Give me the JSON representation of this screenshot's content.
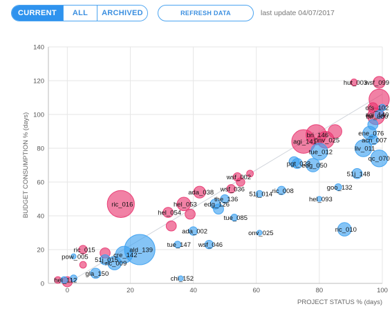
{
  "toolbar": {
    "tabs": [
      {
        "label": "CURRENT",
        "active": true
      },
      {
        "label": "ALL",
        "active": false
      },
      {
        "label": "ARCHIVED",
        "active": false
      }
    ],
    "refresh_label": "REFRESH DATA",
    "last_update": "last update 04/07/2017"
  },
  "colors": {
    "pink": "#e8336e",
    "blue": "#3a9ff0",
    "accent": "#2f93ee",
    "grid": "#e6e6e6",
    "trend": "#cfd3da"
  },
  "chart_data": {
    "type": "scatter",
    "title": "",
    "xlabel": "PROJECT STATUS % (days)",
    "ylabel": "BUDGET CONSUMPTION % (days)",
    "xlim": [
      -6,
      100
    ],
    "ylim": [
      0,
      140
    ],
    "xticks": [
      0,
      20,
      40,
      60,
      80,
      100
    ],
    "yticks": [
      0,
      20,
      40,
      60,
      80,
      100,
      120,
      140
    ],
    "grid": true,
    "trend_line": [
      [
        0,
        0
      ],
      [
        100,
        112
      ]
    ],
    "series": [
      {
        "color": "pink",
        "points": [
          {
            "x": 17,
            "y": 47,
            "r": 8,
            "label": "ric_016"
          },
          {
            "x": 75,
            "y": 84,
            "r": 7,
            "label": "agi_141"
          },
          {
            "x": 79,
            "y": 88,
            "r": 6,
            "label": "bri_146"
          },
          {
            "x": 82,
            "y": 85,
            "r": 5,
            "label": "onv_025"
          },
          {
            "x": 85,
            "y": 90,
            "r": 4,
            "label": ""
          },
          {
            "x": 98,
            "y": 99,
            "r": 5,
            "label": "bri_080"
          },
          {
            "x": 99,
            "y": 109,
            "r": 6,
            "label": ""
          },
          {
            "x": 99,
            "y": 119,
            "r": 3.5,
            "label": "wsf_099"
          },
          {
            "x": 91,
            "y": 119,
            "r": 2,
            "label": "hut_003"
          },
          {
            "x": 97,
            "y": 104,
            "r": 3,
            "label": ""
          },
          {
            "x": 42,
            "y": 54,
            "r": 3.5,
            "label": "ada_038"
          },
          {
            "x": 37,
            "y": 47,
            "r": 4,
            "label": "hel_053"
          },
          {
            "x": 32,
            "y": 42,
            "r": 3,
            "label": "hel_054"
          },
          {
            "x": 33,
            "y": 34,
            "r": 3,
            "label": ""
          },
          {
            "x": 39,
            "y": 41,
            "r": 3,
            "label": ""
          },
          {
            "x": 54,
            "y": 63,
            "r": 2.5,
            "label": "wsf_002"
          },
          {
            "x": 55,
            "y": 60,
            "r": 2.5,
            "label": ""
          },
          {
            "x": 58,
            "y": 65,
            "r": 2,
            "label": ""
          },
          {
            "x": 52,
            "y": 56,
            "r": 2.5,
            "label": "wsf_036"
          },
          {
            "x": 5,
            "y": 20,
            "r": 2.5,
            "label": "ric_015"
          },
          {
            "x": 12,
            "y": 18,
            "r": 3,
            "label": ""
          },
          {
            "x": 5,
            "y": 11,
            "r": 2,
            "label": ""
          },
          {
            "x": -3,
            "y": 2,
            "r": 2,
            "label": ""
          },
          {
            "x": 0,
            "y": 1,
            "r": 3,
            "label": ""
          }
        ]
      },
      {
        "color": "blue",
        "points": [
          {
            "x": 23,
            "y": 20,
            "r": 9,
            "label": "ald_139"
          },
          {
            "x": 18,
            "y": 17,
            "r": 5,
            "label": "cre_142"
          },
          {
            "x": 15,
            "y": 12,
            "r": 4,
            "label": "ric_009"
          },
          {
            "x": 12,
            "y": 14,
            "r": 3,
            "label": "51j_015"
          },
          {
            "x": 9,
            "y": 6,
            "r": 3,
            "label": "gla_150"
          },
          {
            "x": 35,
            "y": 23,
            "r": 2,
            "label": "tue_147"
          },
          {
            "x": 40,
            "y": 31,
            "r": 2.5,
            "label": "ada_002"
          },
          {
            "x": 45,
            "y": 23,
            "r": 2.5,
            "label": "wsf_046"
          },
          {
            "x": 48,
            "y": 44,
            "r": 3,
            "label": ""
          },
          {
            "x": 50,
            "y": 50,
            "r": 2.5,
            "label": "the_136"
          },
          {
            "x": 47,
            "y": 47,
            "r": 3,
            "label": "edg_126"
          },
          {
            "x": 53,
            "y": 39,
            "r": 2,
            "label": "tue_085"
          },
          {
            "x": 61,
            "y": 30,
            "r": 1.5,
            "label": "onv_025"
          },
          {
            "x": 36,
            "y": 3,
            "r": 1.5,
            "label": "chi_152"
          },
          {
            "x": 61,
            "y": 53,
            "r": 2,
            "label": "51j_014"
          },
          {
            "x": 68,
            "y": 55,
            "r": 2.5,
            "label": "ric_008"
          },
          {
            "x": 72,
            "y": 72,
            "r": 3,
            "label": ""
          },
          {
            "x": 78,
            "y": 70,
            "r": 4,
            "label": "edg_050"
          },
          {
            "x": 73,
            "y": 71,
            "r": 3,
            "label": "pgt_023"
          },
          {
            "x": 80,
            "y": 78,
            "r": 5,
            "label": "tue_012"
          },
          {
            "x": 88,
            "y": 32,
            "r": 4,
            "label": "ric_010"
          },
          {
            "x": 80,
            "y": 50,
            "r": 1.5,
            "label": "hel_093"
          },
          {
            "x": 86,
            "y": 57,
            "r": 2,
            "label": "goo_132"
          },
          {
            "x": 92,
            "y": 65,
            "r": 3,
            "label": "51j_148"
          },
          {
            "x": 94,
            "y": 80,
            "r": 5,
            "label": "liv_011"
          },
          {
            "x": 96,
            "y": 89,
            "r": 4,
            "label": "ene_076"
          },
          {
            "x": 97,
            "y": 85,
            "r": 3,
            "label": "acn_007"
          },
          {
            "x": 99,
            "y": 74,
            "r": 5,
            "label": "qc_070"
          },
          {
            "x": 97,
            "y": 94,
            "r": 3,
            "label": ""
          },
          {
            "x": 99,
            "y": 100,
            "r": 2.5,
            "label": "agi_140"
          },
          {
            "x": 100,
            "y": 104,
            "r": 2,
            "label": "ofs_102"
          },
          {
            "x": -1,
            "y": 2,
            "r": 2,
            "label": "hel_112"
          },
          {
            "x": 2,
            "y": 3,
            "r": 2,
            "label": ""
          },
          {
            "x": 2,
            "y": 16,
            "r": 1.5,
            "label": "pow_005"
          }
        ]
      }
    ]
  }
}
